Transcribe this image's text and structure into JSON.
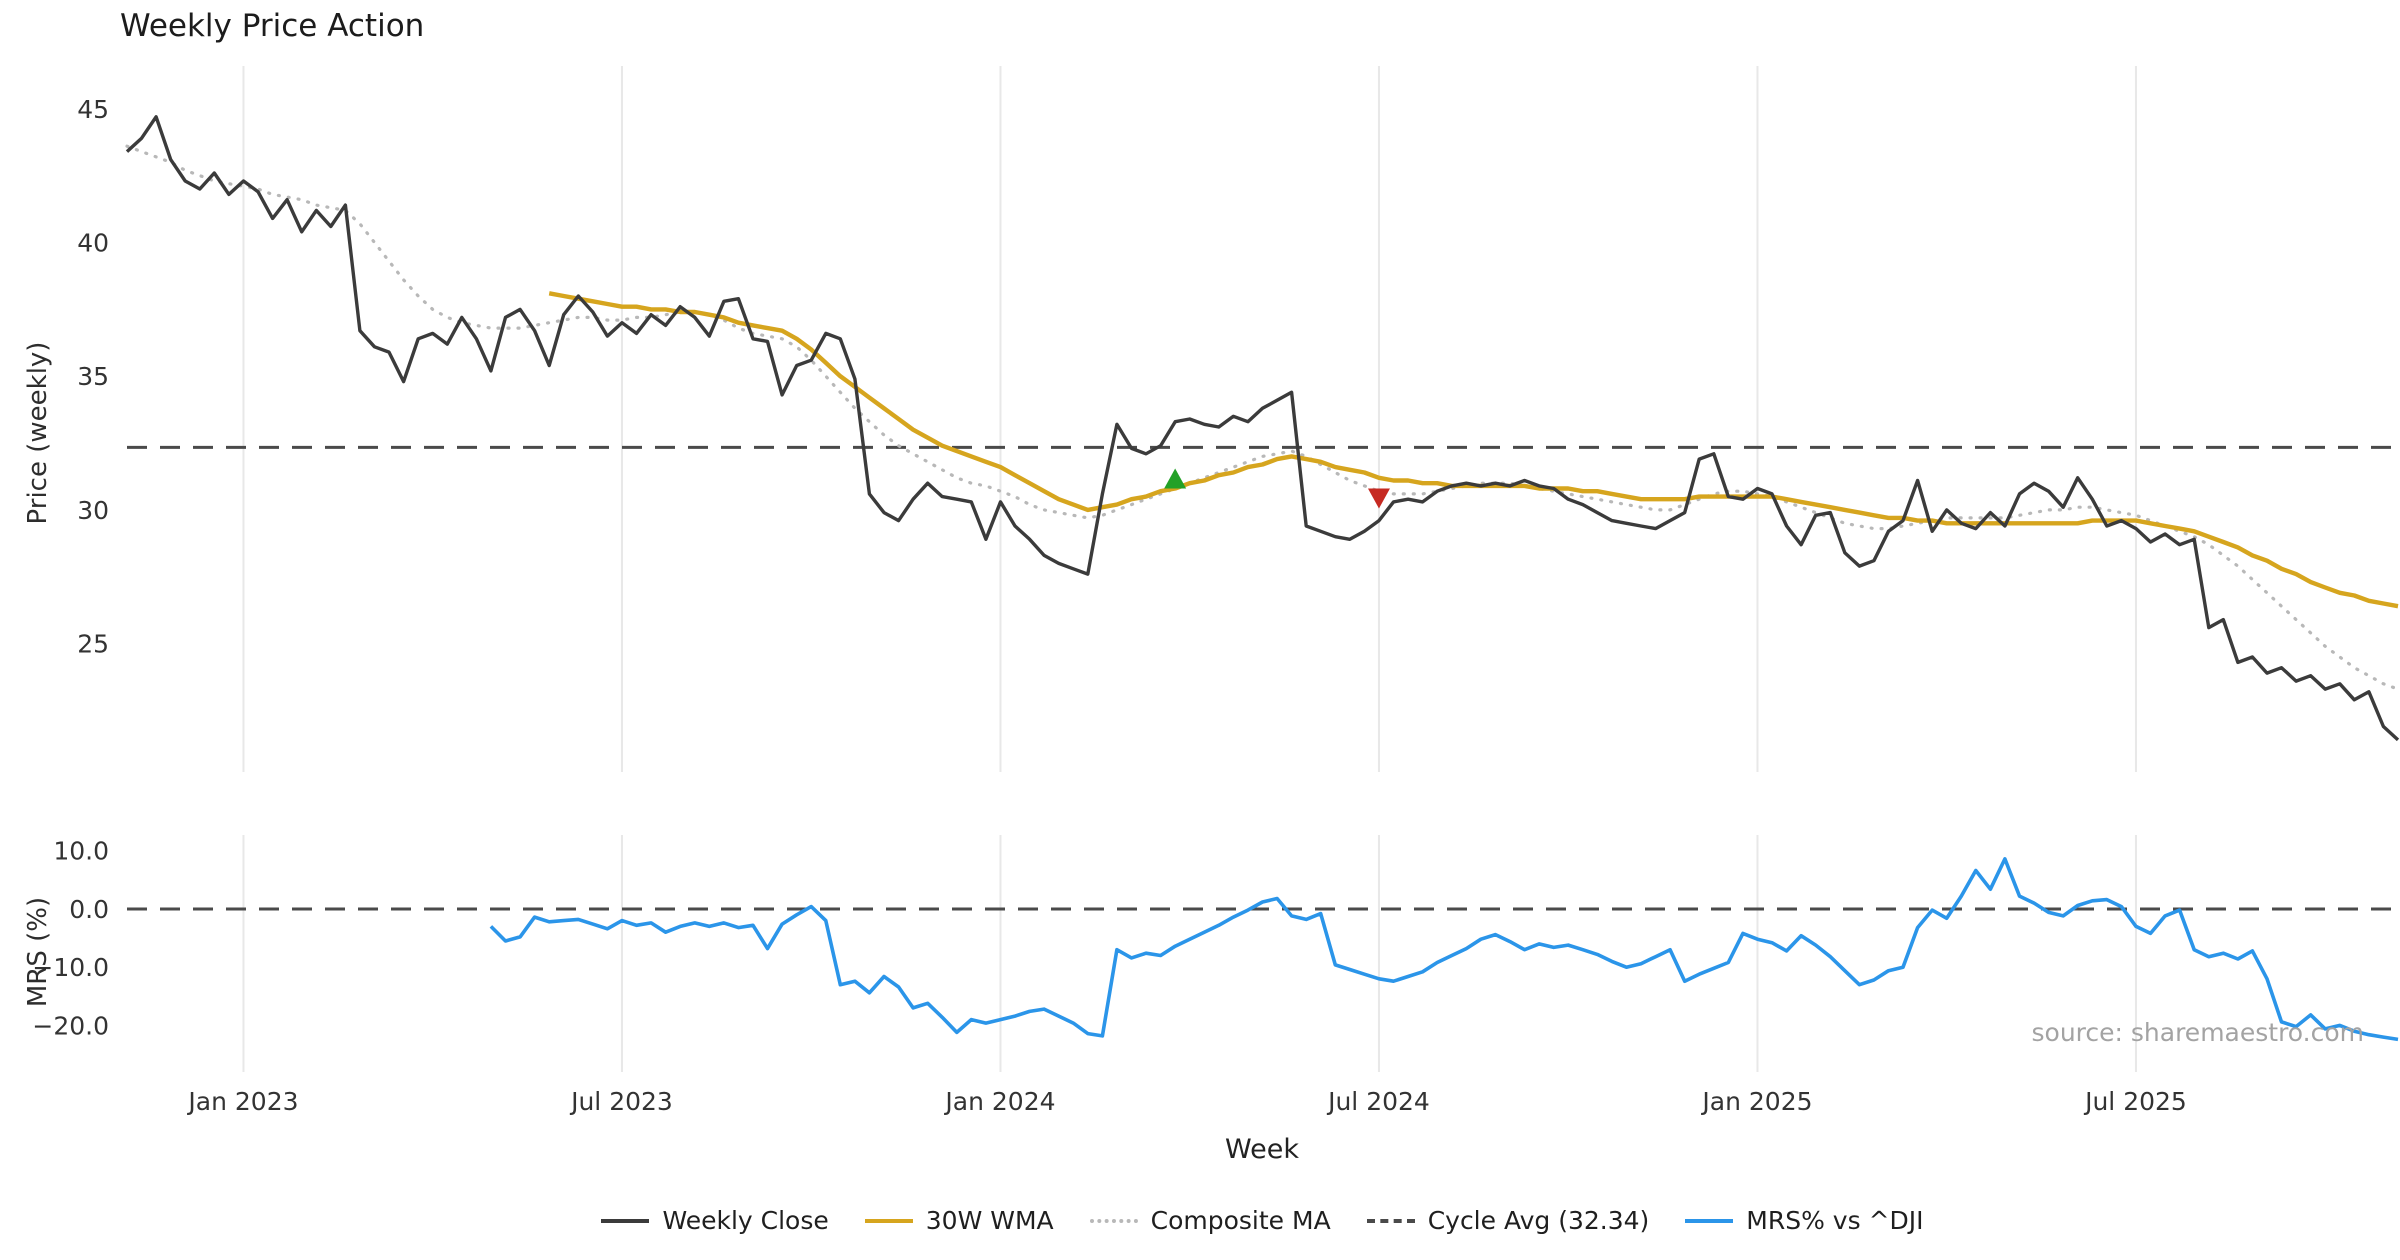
{
  "title": "Weekly Price Action",
  "source": "source: sharemaestro.com",
  "legend": {
    "items": [
      {
        "label": "Weekly Close",
        "color": "#3b3b3b",
        "swatch_style": "solid"
      },
      {
        "label": "30W WMA",
        "color": "#d6a51e",
        "swatch_style": "solid"
      },
      {
        "label": "Composite MA",
        "color": "#b8b8b8",
        "swatch_style": "dotted"
      },
      {
        "label": "Cycle Avg (32.34)",
        "color": "#4a4a4a",
        "swatch_style": "dashed"
      },
      {
        "label": "MRS% vs ^DJI",
        "color": "#2b95e9",
        "swatch_style": "solid"
      }
    ]
  },
  "chart_data": [
    {
      "type": "line",
      "title": "Weekly Price Action",
      "ylabel": "Price (weekly)",
      "ylim": [
        20.2,
        46.6
      ],
      "x_unit": "weekly, Nov 2022 - Oct 2025",
      "x_ticks": {
        "positions": [
          8,
          34,
          60,
          86,
          112,
          138
        ],
        "labels": [
          "Jan 2023",
          "Jul 2023",
          "Jan 2024",
          "Jul 2024",
          "Jan 2025",
          "Jul 2025"
        ]
      },
      "y_ticks": [
        {
          "value": 45,
          "label": "45"
        },
        {
          "value": 40,
          "label": "40"
        },
        {
          "value": 35,
          "label": "35"
        },
        {
          "value": 30,
          "label": "30"
        },
        {
          "value": 25,
          "label": "25"
        }
      ],
      "reference_line": {
        "name": "Cycle Avg",
        "value": 32.34,
        "color": "#4a4a4a"
      },
      "markers": [
        {
          "id": "bullish-signal-marker",
          "type": "up-triangle",
          "color": "#23a127",
          "week": 72,
          "value": 31.1
        },
        {
          "id": "bearish-signal-marker",
          "type": "down-triangle",
          "color": "#c62a22",
          "week": 86,
          "value": 30.5
        }
      ],
      "series": [
        {
          "id": "weekly-close",
          "name": "Weekly Close",
          "color": "#3b3b3b",
          "x_start": 0,
          "values": [
            43.4,
            43.9,
            44.7,
            43.1,
            42.3,
            42.0,
            42.6,
            41.8,
            42.3,
            41.9,
            40.9,
            41.6,
            40.4,
            41.2,
            40.6,
            41.4,
            36.7,
            36.1,
            35.9,
            34.8,
            36.4,
            36.6,
            36.2,
            37.2,
            36.4,
            35.2,
            37.2,
            37.5,
            36.7,
            35.4,
            37.3,
            38.0,
            37.4,
            36.5,
            37.0,
            36.6,
            37.3,
            36.9,
            37.6,
            37.2,
            36.5,
            37.8,
            37.9,
            36.4,
            36.3,
            34.3,
            35.4,
            35.6,
            36.6,
            36.4,
            34.9,
            30.6,
            29.9,
            29.6,
            30.4,
            31.0,
            30.5,
            30.4,
            30.3,
            28.9,
            30.3,
            29.4,
            28.9,
            28.3,
            28.0,
            27.8,
            27.6,
            30.6,
            33.2,
            32.3,
            32.1,
            32.4,
            33.3,
            33.4,
            33.2,
            33.1,
            33.5,
            33.3,
            33.8,
            34.1,
            34.4,
            29.4,
            29.2,
            29.0,
            28.9,
            29.2,
            29.6,
            30.3,
            30.4,
            30.3,
            30.7,
            30.9,
            31.0,
            30.9,
            31.0,
            30.9,
            31.1,
            30.9,
            30.8,
            30.4,
            30.2,
            29.9,
            29.6,
            29.5,
            29.4,
            29.3,
            29.6,
            29.9,
            31.9,
            32.1,
            30.5,
            30.4,
            30.8,
            30.6,
            29.4,
            28.7,
            29.8,
            29.9,
            28.4,
            27.9,
            28.1,
            29.2,
            29.6,
            31.1,
            29.2,
            30.0,
            29.5,
            29.3,
            29.9,
            29.4,
            30.6,
            31.0,
            30.7,
            30.1,
            31.2,
            30.4,
            29.4,
            29.6,
            29.3,
            28.8,
            29.1,
            28.7,
            28.9,
            25.6,
            25.9,
            24.3,
            24.5,
            23.9,
            24.1,
            23.6,
            23.8,
            23.3,
            23.5,
            22.9,
            23.2,
            21.9,
            21.4
          ]
        },
        {
          "id": "wma-30w",
          "name": "30W WMA",
          "color": "#d6a51e",
          "x_start": 29,
          "values": [
            38.1,
            38.0,
            37.9,
            37.8,
            37.7,
            37.6,
            37.6,
            37.5,
            37.5,
            37.4,
            37.4,
            37.3,
            37.2,
            37.0,
            36.9,
            36.8,
            36.7,
            36.4,
            36.0,
            35.5,
            35.0,
            34.6,
            34.2,
            33.8,
            33.4,
            33.0,
            32.7,
            32.4,
            32.2,
            32.0,
            31.8,
            31.6,
            31.3,
            31.0,
            30.7,
            30.4,
            30.2,
            30.0,
            30.1,
            30.2,
            30.4,
            30.5,
            30.7,
            30.8,
            31.0,
            31.1,
            31.3,
            31.4,
            31.6,
            31.7,
            31.9,
            32.0,
            31.9,
            31.8,
            31.6,
            31.5,
            31.4,
            31.2,
            31.1,
            31.1,
            31.0,
            31.0,
            30.9,
            30.9,
            30.9,
            30.9,
            30.9,
            30.9,
            30.8,
            30.8,
            30.8,
            30.7,
            30.7,
            30.6,
            30.5,
            30.4,
            30.4,
            30.4,
            30.4,
            30.5,
            30.5,
            30.5,
            30.5,
            30.5,
            30.5,
            30.4,
            30.3,
            30.2,
            30.1,
            30.0,
            29.9,
            29.8,
            29.7,
            29.7,
            29.6,
            29.6,
            29.5,
            29.5,
            29.5,
            29.5,
            29.5,
            29.5,
            29.5,
            29.5,
            29.5,
            29.5,
            29.6,
            29.6,
            29.6,
            29.6,
            29.5,
            29.4,
            29.3,
            29.2,
            29.0,
            28.8,
            28.6,
            28.3,
            28.1,
            27.8,
            27.6,
            27.3,
            27.1,
            26.9,
            26.8,
            26.6,
            26.5,
            26.4
          ]
        },
        {
          "id": "composite-ma",
          "name": "Composite MA",
          "color": "#b8b8b8",
          "x_start": 0,
          "values": [
            43.6,
            43.4,
            43.2,
            43.0,
            42.7,
            42.5,
            42.3,
            42.2,
            42.1,
            42.0,
            41.8,
            41.7,
            41.6,
            41.4,
            41.3,
            41.2,
            40.7,
            40.0,
            39.3,
            38.6,
            38.0,
            37.5,
            37.2,
            37.0,
            36.9,
            36.8,
            36.8,
            36.8,
            36.9,
            37.0,
            37.1,
            37.2,
            37.2,
            37.1,
            37.1,
            37.2,
            37.2,
            37.3,
            37.4,
            37.4,
            37.3,
            37.1,
            36.8,
            36.6,
            36.5,
            36.4,
            36.1,
            35.6,
            35.0,
            34.4,
            33.8,
            33.3,
            32.8,
            32.4,
            32.1,
            31.8,
            31.5,
            31.2,
            31.0,
            30.9,
            30.7,
            30.5,
            30.2,
            30.0,
            29.9,
            29.8,
            29.7,
            29.8,
            30.0,
            30.2,
            30.4,
            30.6,
            30.8,
            31.0,
            31.2,
            31.4,
            31.6,
            31.8,
            32.0,
            32.1,
            32.2,
            32.0,
            31.7,
            31.4,
            31.1,
            30.9,
            30.7,
            30.6,
            30.6,
            30.6,
            30.7,
            30.8,
            30.9,
            31.0,
            31.0,
            31.0,
            30.9,
            30.8,
            30.7,
            30.6,
            30.5,
            30.4,
            30.3,
            30.2,
            30.1,
            30.0,
            30.0,
            30.2,
            30.4,
            30.6,
            30.7,
            30.7,
            30.6,
            30.5,
            30.3,
            30.1,
            29.9,
            29.7,
            29.5,
            29.4,
            29.3,
            29.3,
            29.4,
            29.5,
            29.6,
            29.7,
            29.7,
            29.7,
            29.7,
            29.7,
            29.8,
            29.9,
            30.0,
            30.0,
            30.1,
            30.1,
            30.0,
            29.9,
            29.8,
            29.6,
            29.4,
            29.2,
            29.0,
            28.7,
            28.3,
            27.9,
            27.4,
            26.9,
            26.4,
            25.9,
            25.4,
            24.9,
            24.5,
            24.1,
            23.8,
            23.5,
            23.3
          ]
        }
      ]
    },
    {
      "type": "line",
      "ylabel": "MRS (%)",
      "xlabel": "Week",
      "ylim": [
        -28.0,
        12.7
      ],
      "y_ticks": [
        {
          "value": 10,
          "label": "10.0"
        },
        {
          "value": 0,
          "label": "0.0"
        },
        {
          "value": -10,
          "label": "−10.0"
        },
        {
          "value": -20,
          "label": "−20.0"
        }
      ],
      "reference_line": {
        "name": "zero",
        "value": 0,
        "color": "#4a4a4a"
      },
      "series": [
        {
          "id": "mrs-vs-dji",
          "name": "MRS% vs ^DJI",
          "color": "#2b95e9",
          "x_start": 25,
          "values": [
            -3.0,
            -5.5,
            -4.8,
            -1.4,
            -2.2,
            -2.0,
            -1.8,
            -2.6,
            -3.4,
            -2.0,
            -2.8,
            -2.4,
            -4.0,
            -3.0,
            -2.4,
            -3.0,
            -2.4,
            -3.2,
            -2.8,
            -6.8,
            -2.6,
            -1.0,
            0.4,
            -2.0,
            -13.0,
            -12.4,
            -14.4,
            -11.6,
            -13.4,
            -17.0,
            -16.2,
            -18.6,
            -21.2,
            -19.0,
            -19.6,
            -19.0,
            -18.4,
            -17.6,
            -17.2,
            -18.4,
            -19.6,
            -21.4,
            -21.8,
            -7.0,
            -8.4,
            -7.6,
            -8.0,
            -6.4,
            -5.2,
            -4.0,
            -2.8,
            -1.4,
            -0.2,
            1.2,
            1.8,
            -1.2,
            -1.8,
            -0.8,
            -9.6,
            -10.4,
            -11.2,
            -12.0,
            -12.4,
            -11.6,
            -10.8,
            -9.2,
            -8.0,
            -6.8,
            -5.2,
            -4.4,
            -5.6,
            -7.0,
            -6.0,
            -6.6,
            -6.2,
            -7.0,
            -7.8,
            -9.0,
            -10.0,
            -9.4,
            -8.2,
            -7.0,
            -12.4,
            -11.2,
            -10.2,
            -9.2,
            -4.2,
            -5.2,
            -5.8,
            -7.2,
            -4.6,
            -6.2,
            -8.2,
            -10.6,
            -13.0,
            -12.2,
            -10.6,
            -10.0,
            -3.2,
            -0.2,
            -1.6,
            2.2,
            6.6,
            3.4,
            8.6,
            2.2,
            1.0,
            -0.6,
            -1.2,
            0.6,
            1.4,
            1.6,
            0.4,
            -3.0,
            -4.2,
            -1.2,
            -0.2,
            -7.0,
            -8.2,
            -7.6,
            -8.6,
            -7.2,
            -12.0,
            -19.4,
            -20.2,
            -18.2,
            -20.6,
            -20.0,
            -21.0,
            -21.6,
            -22.0,
            -22.4
          ]
        }
      ]
    }
  ]
}
